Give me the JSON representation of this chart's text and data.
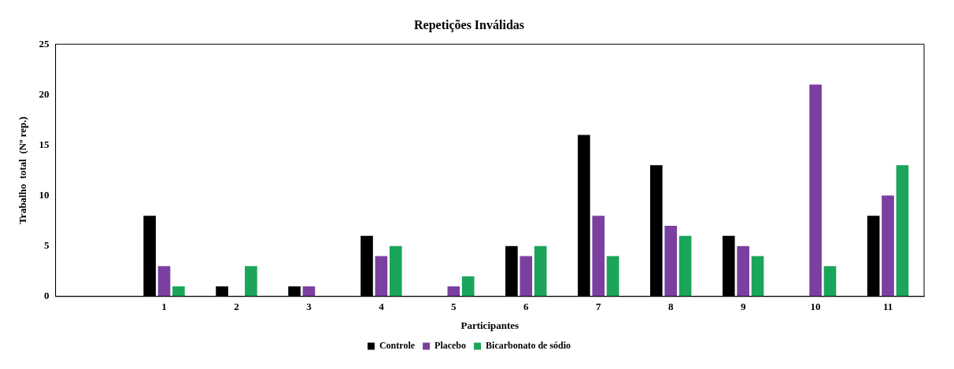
{
  "chart_data": {
    "type": "bar",
    "title": "Repetições Inválidas",
    "xlabel": "Participantes",
    "ylabel": "Trabalho  total  (Nº rep.)",
    "categories": [
      null,
      "1",
      "2",
      "3",
      "4",
      "5",
      "6",
      "7",
      "8",
      "9",
      "10",
      "11"
    ],
    "series": [
      {
        "name": "Controle",
        "color": "#000000",
        "values": [
          null,
          8,
          1,
          1,
          6,
          0,
          5,
          16,
          13,
          6,
          0,
          8
        ]
      },
      {
        "name": "Placebo",
        "color": "#7b3fa0",
        "values": [
          null,
          3,
          0,
          1,
          4,
          1,
          4,
          8,
          7,
          5,
          21,
          10
        ]
      },
      {
        "name": "Bicarbonato de sódio",
        "color": "#1aa55a",
        "values": [
          null,
          1,
          3,
          0,
          5,
          2,
          5,
          4,
          6,
          4,
          3,
          13
        ]
      }
    ],
    "ylim": [
      0,
      25
    ],
    "yticks": [
      0,
      5,
      10,
      15,
      20,
      25
    ],
    "legend": "bottom"
  }
}
